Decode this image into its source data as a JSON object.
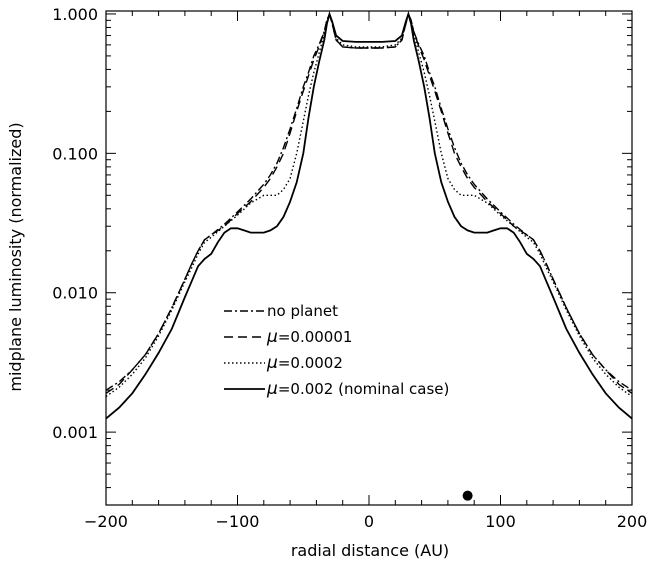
{
  "chart_data": {
    "type": "line",
    "xlabel": "radial distance (AU)",
    "ylabel": "midplane luminosity (normalized)",
    "xlim": [
      -200,
      200
    ],
    "ylim": [
      0.0003,
      1.05
    ],
    "yscale": "log",
    "x_ticks": [
      -200,
      -100,
      0,
      100,
      200
    ],
    "x_tick_labels": [
      "−200",
      "−100",
      "0",
      "100",
      "200"
    ],
    "y_ticks": [
      0.001,
      0.01,
      0.1,
      1.0
    ],
    "y_tick_labels": [
      "0.001",
      "0.010",
      "0.100",
      "1.000"
    ],
    "legend_position": "center-left",
    "series": [
      {
        "name": "no planet",
        "legend_label": "no planet",
        "dash": "dashdot",
        "x": [
          0,
          10,
          20,
          25,
          28,
          30,
          32,
          34,
          38,
          42,
          46,
          50,
          55,
          60,
          65,
          70,
          75,
          80,
          90,
          100,
          110,
          120,
          125,
          130,
          135,
          140,
          150,
          160,
          170,
          180,
          190,
          200
        ],
        "y": [
          0.57,
          0.57,
          0.58,
          0.65,
          0.85,
          1.0,
          0.9,
          0.75,
          0.6,
          0.5,
          0.38,
          0.3,
          0.21,
          0.15,
          0.11,
          0.085,
          0.07,
          0.06,
          0.047,
          0.038,
          0.031,
          0.026,
          0.024,
          0.02,
          0.016,
          0.0125,
          0.0078,
          0.0051,
          0.0036,
          0.0028,
          0.0023,
          0.002
        ]
      },
      {
        "name": "μ=0.00001",
        "legend_label": "=0.00001",
        "dash": "dashed",
        "x": [
          0,
          10,
          20,
          25,
          28,
          30,
          32,
          34,
          38,
          42,
          46,
          50,
          55,
          60,
          65,
          70,
          75,
          80,
          90,
          100,
          110,
          120,
          125,
          130,
          135,
          140,
          150,
          160,
          170,
          180,
          190,
          200
        ],
        "y": [
          0.57,
          0.57,
          0.58,
          0.65,
          0.85,
          1.0,
          0.9,
          0.75,
          0.58,
          0.47,
          0.36,
          0.28,
          0.2,
          0.14,
          0.1,
          0.08,
          0.066,
          0.057,
          0.045,
          0.037,
          0.03,
          0.026,
          0.024,
          0.02,
          0.016,
          0.0125,
          0.0078,
          0.0051,
          0.0036,
          0.0028,
          0.0022,
          0.0019
        ]
      },
      {
        "name": "μ=0.0002",
        "legend_label": "=0.0002",
        "dash": "dotted",
        "x": [
          0,
          10,
          20,
          25,
          28,
          30,
          32,
          34,
          38,
          42,
          46,
          50,
          55,
          60,
          65,
          70,
          75,
          80,
          90,
          100,
          110,
          120,
          125,
          130,
          135,
          140,
          150,
          160,
          170,
          180,
          190,
          200
        ],
        "y": [
          0.58,
          0.58,
          0.6,
          0.67,
          0.86,
          1.0,
          0.9,
          0.72,
          0.52,
          0.38,
          0.26,
          0.17,
          0.1,
          0.066,
          0.055,
          0.05,
          0.05,
          0.05,
          0.044,
          0.036,
          0.03,
          0.025,
          0.023,
          0.019,
          0.015,
          0.012,
          0.0075,
          0.0049,
          0.0034,
          0.0026,
          0.0021,
          0.0018
        ]
      },
      {
        "name": "μ=0.002 (nominal case)",
        "legend_label": "=0.002 (nominal case)",
        "dash": "solid",
        "x": [
          0,
          10,
          20,
          25,
          28,
          30,
          32,
          34,
          38,
          42,
          46,
          50,
          55,
          60,
          65,
          70,
          75,
          80,
          85,
          90,
          95,
          100,
          105,
          110,
          115,
          120,
          125,
          130,
          135,
          140,
          150,
          160,
          170,
          180,
          190,
          200
        ],
        "y": [
          0.63,
          0.63,
          0.64,
          0.7,
          0.88,
          1.0,
          0.85,
          0.65,
          0.45,
          0.3,
          0.18,
          0.1,
          0.062,
          0.045,
          0.035,
          0.03,
          0.028,
          0.027,
          0.027,
          0.027,
          0.028,
          0.029,
          0.029,
          0.027,
          0.023,
          0.019,
          0.0175,
          0.0155,
          0.012,
          0.0093,
          0.0055,
          0.0037,
          0.0026,
          0.0019,
          0.0015,
          0.00125
        ]
      }
    ],
    "markers": [
      {
        "name": "planet-position-marker",
        "x": 75,
        "y": 0.00035
      }
    ],
    "legend": {
      "entries": [
        {
          "prefix": "",
          "text": "no planet",
          "dash": "dashdot"
        },
        {
          "prefix": "μ",
          "text": "=0.00001",
          "dash": "dashed"
        },
        {
          "prefix": "μ",
          "text": "=0.0002",
          "dash": "dotted"
        },
        {
          "prefix": "μ",
          "text": "=0.002 (nominal case)",
          "dash": "solid"
        }
      ]
    }
  }
}
